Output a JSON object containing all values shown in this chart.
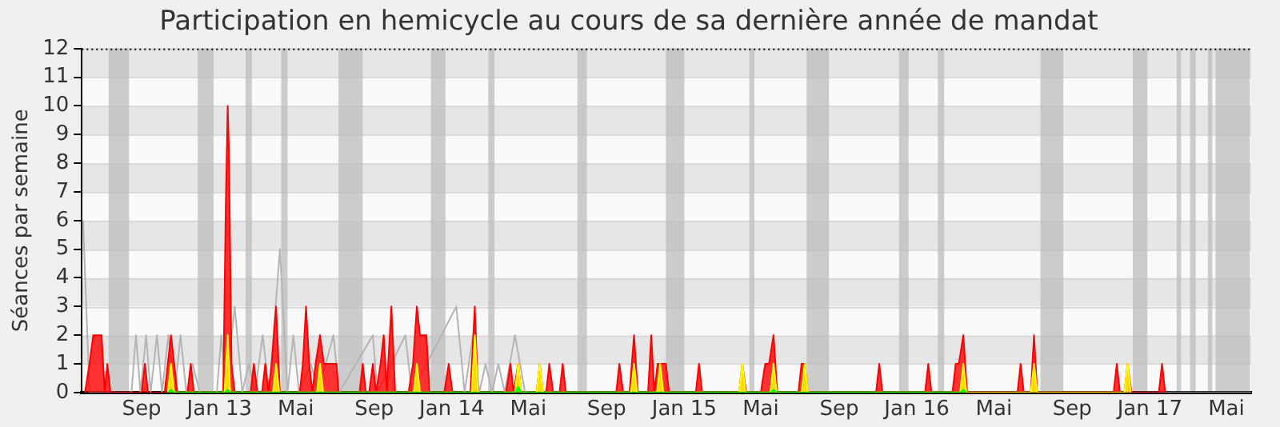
{
  "chart_data": {
    "type": "area",
    "title": "Participation en hemicycle au cours de sa dernière année de mandat",
    "ylabel": "Séances par semaine",
    "xlim": [
      "2012-05-30",
      "2017-06-09"
    ],
    "ylim": [
      0,
      12
    ],
    "yticks": [
      0,
      1,
      2,
      3,
      4,
      5,
      6,
      7,
      8,
      9,
      10,
      11,
      12
    ],
    "xticks": [
      {
        "value": "2012-09-01",
        "label": "Sep"
      },
      {
        "value": "2013-01-01",
        "label": "Jan 13"
      },
      {
        "value": "2013-05-01",
        "label": "Mai"
      },
      {
        "value": "2013-09-01",
        "label": "Sep"
      },
      {
        "value": "2014-01-01",
        "label": "Jan 14"
      },
      {
        "value": "2014-05-01",
        "label": "Mai"
      },
      {
        "value": "2014-09-01",
        "label": "Sep"
      },
      {
        "value": "2015-01-01",
        "label": "Jan 15"
      },
      {
        "value": "2015-05-01",
        "label": "Mai"
      },
      {
        "value": "2015-09-01",
        "label": "Sep"
      },
      {
        "value": "2016-01-01",
        "label": "Jan 16"
      },
      {
        "value": "2016-05-01",
        "label": "Mai"
      },
      {
        "value": "2016-09-01",
        "label": "Sep"
      },
      {
        "value": "2017-01-01",
        "label": "Jan 17"
      },
      {
        "value": "2017-05-01",
        "label": "Mai"
      }
    ],
    "grid": "y",
    "legend": false,
    "marker": "none",
    "ref_lines": [
      {
        "axis": "y",
        "value": 12,
        "color": "#000000",
        "line_style": "dotted"
      }
    ],
    "bands": [
      {
        "axis": "x",
        "from": "2012-07-11",
        "to": "2012-08-12",
        "color": "#bcbcbc"
      },
      {
        "axis": "x",
        "from": "2012-11-28",
        "to": "2012-12-23",
        "color": "#bcbcbc"
      },
      {
        "axis": "x",
        "from": "2013-02-11",
        "to": "2013-02-21",
        "color": "#bcbcbc"
      },
      {
        "axis": "x",
        "from": "2013-04-08",
        "to": "2013-04-18",
        "color": "#bcbcbc"
      },
      {
        "axis": "x",
        "from": "2013-07-07",
        "to": "2013-08-14",
        "color": "#bcbcbc"
      },
      {
        "axis": "x",
        "from": "2013-11-29",
        "to": "2013-12-22",
        "color": "#bcbcbc"
      },
      {
        "axis": "x",
        "from": "2014-02-27",
        "to": "2014-03-09",
        "color": "#bcbcbc"
      },
      {
        "axis": "x",
        "from": "2014-07-17",
        "to": "2014-08-01",
        "color": "#bcbcbc"
      },
      {
        "axis": "x",
        "from": "2014-12-03",
        "to": "2015-01-01",
        "color": "#bcbcbc"
      },
      {
        "axis": "x",
        "from": "2015-04-13",
        "to": "2015-04-21",
        "color": "#bcbcbc"
      },
      {
        "axis": "x",
        "from": "2015-07-12",
        "to": "2015-08-16",
        "color": "#bcbcbc"
      },
      {
        "axis": "x",
        "from": "2015-12-04",
        "to": "2015-12-19",
        "color": "#bcbcbc"
      },
      {
        "axis": "x",
        "from": "2016-02-03",
        "to": "2016-02-13",
        "color": "#bcbcbc"
      },
      {
        "axis": "x",
        "from": "2016-07-13",
        "to": "2016-08-18",
        "color": "#bcbcbc"
      },
      {
        "axis": "x",
        "from": "2016-12-05",
        "to": "2016-12-28",
        "color": "#bcbcbc"
      },
      {
        "axis": "x",
        "from": "2017-02-12",
        "to": "2017-02-19",
        "color": "#bcbcbc"
      },
      {
        "axis": "x",
        "from": "2017-03-05",
        "to": "2017-03-14",
        "color": "#bcbcbc"
      },
      {
        "axis": "x",
        "from": "2017-04-02",
        "to": "2017-04-09",
        "color": "#bcbcbc"
      },
      {
        "axis": "x",
        "from": "2017-04-14",
        "to": "2017-06-07",
        "color": "#bcbcbc"
      }
    ],
    "series": [
      {
        "type": "line",
        "color": "#b4b4b4",
        "x": [
          "2012-06-01",
          "2012-06-11",
          "2012-08-16",
          "2012-08-23",
          "2012-08-30",
          "2012-09-08",
          "2012-09-15",
          "2012-09-25",
          "2012-10-03",
          "2012-10-13",
          "2012-10-23",
          "2012-11-01",
          "2012-11-10",
          "2012-11-20",
          "2012-12-01",
          "2012-12-28",
          "2013-01-04",
          "2013-01-11",
          "2013-01-25",
          "2013-02-06",
          "2013-02-16",
          "2013-02-26",
          "2013-03-10",
          "2013-03-20",
          "2013-04-06",
          "2013-04-18",
          "2013-04-27",
          "2013-05-06",
          "2013-05-25",
          "2013-06-05",
          "2013-06-29",
          "2013-07-08",
          "2013-08-30",
          "2013-09-06",
          "2013-10-20",
          "2013-10-30",
          "2014-01-08",
          "2014-01-21",
          "2014-02-03",
          "2014-02-13",
          "2014-02-23",
          "2014-03-05",
          "2014-03-15",
          "2014-03-25",
          "2014-04-10",
          "2014-04-26",
          "2017-06-09"
        ],
        "values": [
          6,
          0,
          0,
          2,
          0,
          2,
          0,
          2,
          0,
          2,
          0,
          2,
          0,
          1,
          0,
          0,
          2,
          0,
          3,
          0,
          1,
          0,
          2,
          0,
          5,
          0,
          2,
          0,
          1,
          0,
          2,
          0,
          2,
          0,
          2,
          0,
          3,
          0,
          2,
          0,
          1,
          0,
          1,
          0,
          2,
          0,
          0
        ]
      },
      {
        "color": "#ff0000",
        "x": [
          "2012-06-04",
          "2012-06-11",
          "2012-06-17",
          "2012-06-30",
          "2012-07-05",
          "2012-07-09",
          "2012-07-14",
          "2012-09-01",
          "2012-09-06",
          "2012-09-11",
          "2012-10-07",
          "2012-10-12",
          "2012-10-17",
          "2012-10-22",
          "2012-10-27",
          "2012-11-12",
          "2012-11-17",
          "2012-11-22",
          "2013-01-07",
          "2013-01-11",
          "2013-01-14",
          "2013-01-16",
          "2013-01-20",
          "2013-01-25",
          "2013-02-19",
          "2013-02-24",
          "2013-03-02",
          "2013-03-09",
          "2013-03-14",
          "2013-03-19",
          "2013-03-24",
          "2013-03-31",
          "2013-04-06",
          "2013-05-07",
          "2013-05-12",
          "2013-05-17",
          "2013-05-22",
          "2013-05-27",
          "2013-06-01",
          "2013-06-08",
          "2013-06-14",
          "2013-07-04",
          "2013-07-07",
          "2013-08-09",
          "2013-08-14",
          "2013-08-19",
          "2013-08-24",
          "2013-08-30",
          "2013-09-04",
          "2013-09-11",
          "2013-09-16",
          "2013-09-21",
          "2013-09-23",
          "2013-09-28",
          "2013-10-04",
          "2013-10-25",
          "2013-11-01",
          "2013-11-07",
          "2013-11-12",
          "2013-11-22",
          "2013-11-27",
          "2013-12-20",
          "2013-12-27",
          "2014-01-02",
          "2014-01-30",
          "2014-02-06",
          "2014-02-11",
          "2014-03-27",
          "2014-04-03",
          "2014-04-08",
          "2014-04-10",
          "2014-04-15",
          "2014-04-20",
          "2014-05-14",
          "2014-05-19",
          "2014-05-24",
          "2014-05-29",
          "2014-06-03",
          "2014-06-09",
          "2014-06-19",
          "2014-06-24",
          "2014-06-29",
          "2014-09-16",
          "2014-09-21",
          "2014-09-27",
          "2014-10-07",
          "2014-10-14",
          "2014-10-20",
          "2014-11-05",
          "2014-11-10",
          "2014-11-15",
          "2014-11-20",
          "2014-12-03",
          "2014-12-08",
          "2015-01-19",
          "2015-01-24",
          "2015-01-29",
          "2015-03-28",
          "2015-04-02",
          "2015-04-08",
          "2015-05-01",
          "2015-05-08",
          "2015-05-14",
          "2015-05-21",
          "2015-05-27",
          "2015-06-29",
          "2015-07-04",
          "2015-07-09",
          "2015-07-14",
          "2015-10-29",
          "2015-11-03",
          "2015-11-08",
          "2016-01-14",
          "2016-01-19",
          "2016-01-24",
          "2016-02-26",
          "2016-03-02",
          "2016-03-07",
          "2016-03-14",
          "2016-03-20",
          "2016-06-07",
          "2016-06-12",
          "2016-06-17",
          "2016-06-28",
          "2016-07-03",
          "2016-07-08",
          "2016-11-05",
          "2016-11-10",
          "2016-11-15",
          "2016-11-22",
          "2016-11-27",
          "2016-12-03",
          "2017-01-15",
          "2017-01-20",
          "2017-01-25"
        ],
        "values": [
          0,
          1,
          2,
          2,
          0,
          1,
          0,
          0,
          1,
          0,
          0,
          1,
          2,
          1,
          0,
          0,
          1,
          0,
          0,
          6.5,
          10,
          8.4,
          1,
          0,
          0,
          1,
          0,
          0,
          1,
          0,
          1,
          3,
          0,
          0,
          1,
          3,
          1,
          0,
          1,
          2,
          1,
          1,
          0,
          0,
          1,
          0,
          0,
          1,
          0,
          1,
          2,
          0,
          1,
          3,
          0,
          0,
          1,
          3,
          2,
          2,
          0,
          0,
          1,
          0,
          0,
          3,
          0,
          0,
          1,
          0,
          0,
          1,
          0,
          0,
          1,
          0,
          0,
          1,
          0,
          0,
          1,
          0,
          0,
          1,
          0,
          0,
          2,
          0,
          0,
          2,
          0,
          1,
          1,
          0,
          0,
          1,
          0,
          0,
          1,
          0,
          0,
          1,
          1,
          2,
          0,
          0,
          1,
          1,
          0,
          0,
          1,
          0,
          0,
          1,
          0,
          0,
          1,
          1,
          2,
          0,
          0,
          1,
          0,
          0,
          2,
          0,
          0,
          1,
          0,
          0,
          1,
          0,
          0,
          1,
          0
        ]
      },
      {
        "color": "#ffff00",
        "x": [
          "2012-10-12",
          "2012-10-17",
          "2012-10-22",
          "2013-01-09",
          "2013-01-14",
          "2013-01-18",
          "2013-03-26",
          "2013-03-31",
          "2013-04-05",
          "2013-06-03",
          "2013-06-08",
          "2013-06-13",
          "2013-11-02",
          "2013-11-07",
          "2013-11-12",
          "2014-02-01",
          "2014-02-06",
          "2014-02-11",
          "2014-04-10",
          "2014-04-15",
          "2014-04-20",
          "2014-05-14",
          "2014-05-19",
          "2014-05-24",
          "2014-10-09",
          "2014-10-14",
          "2014-10-19",
          "2014-11-19",
          "2014-11-24",
          "2014-11-29",
          "2015-03-28",
          "2015-04-02",
          "2015-04-07",
          "2015-05-16",
          "2015-05-21",
          "2015-05-26",
          "2015-07-04",
          "2015-07-09",
          "2015-07-14",
          "2016-03-09",
          "2016-03-14",
          "2016-03-19",
          "2016-06-28",
          "2016-07-03",
          "2016-07-08",
          "2016-11-22",
          "2016-11-27",
          "2016-12-02"
        ],
        "values": [
          0,
          1,
          0,
          0,
          2,
          0,
          0,
          1,
          0,
          0,
          1,
          0,
          0,
          1,
          0,
          0,
          2,
          0,
          0,
          1,
          0,
          0,
          1,
          0,
          0,
          1,
          0,
          0,
          1,
          0,
          0,
          1,
          0,
          0,
          1,
          0,
          0,
          1,
          0,
          0,
          1,
          0,
          0,
          1,
          0,
          0,
          1,
          0
        ]
      },
      {
        "color": "#00ff00",
        "x": [
          "2012-10-12",
          "2012-10-17",
          "2012-10-22",
          "2013-01-09",
          "2013-01-14",
          "2013-01-18",
          "2014-04-10",
          "2014-04-15",
          "2014-04-20",
          "2015-05-16",
          "2015-05-21",
          "2015-05-26",
          "2016-03-09",
          "2016-03-14",
          "2016-03-19"
        ],
        "values": [
          0,
          0.1,
          0,
          0,
          0.1,
          0,
          0,
          0.2,
          0,
          0,
          0.1,
          0,
          0,
          0.1,
          0
        ]
      }
    ]
  }
}
